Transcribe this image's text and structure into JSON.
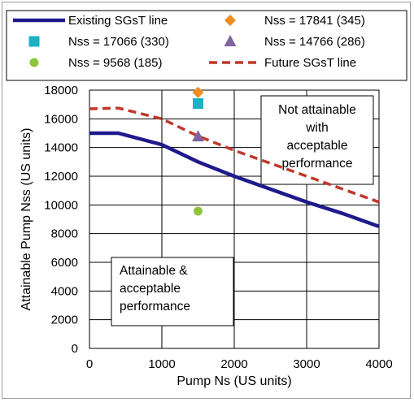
{
  "chart_data": {
    "type": "line",
    "xlabel": "Pump Ns  (US units)",
    "ylabel": "Attainable Pump Nss  (US units)",
    "xlim": [
      0,
      4000
    ],
    "ylim": [
      0,
      18000
    ],
    "x_ticks": [
      0,
      1000,
      2000,
      3000,
      4000
    ],
    "y_ticks": [
      0,
      2000,
      4000,
      6000,
      8000,
      10000,
      12000,
      14000,
      16000,
      18000
    ],
    "grid": true,
    "legend_position": "top",
    "series": [
      {
        "name": "Existing SGsT line",
        "kind": "line",
        "style": "solid",
        "color": "#1f1a8c",
        "points": [
          [
            0,
            15000
          ],
          [
            400,
            15000
          ],
          [
            1000,
            14200
          ],
          [
            1500,
            13000
          ],
          [
            2000,
            12000
          ],
          [
            2500,
            11100
          ],
          [
            3000,
            10200
          ],
          [
            3500,
            9400
          ],
          [
            4000,
            8500
          ]
        ]
      },
      {
        "name": "Future SGsT line",
        "kind": "line",
        "style": "dashed",
        "color": "#c0392b",
        "points": [
          [
            0,
            16700
          ],
          [
            400,
            16750
          ],
          [
            1000,
            16000
          ],
          [
            1500,
            14800
          ],
          [
            2000,
            13800
          ],
          [
            2500,
            12900
          ],
          [
            3000,
            12000
          ],
          [
            3500,
            11100
          ],
          [
            4000,
            10200
          ]
        ]
      },
      {
        "name": "Nss = 17841 (345)",
        "kind": "marker",
        "marker": "diamond",
        "color": "#f28c1e",
        "points": [
          [
            1500,
            17841
          ]
        ]
      },
      {
        "name": "Nss = 17066 (330)",
        "kind": "marker",
        "marker": "square",
        "color": "#1fb0c8",
        "points": [
          [
            1500,
            17066
          ]
        ]
      },
      {
        "name": "Nss = 14766 (286)",
        "kind": "marker",
        "marker": "triangle",
        "color": "#8064a2",
        "points": [
          [
            1500,
            14766
          ]
        ]
      },
      {
        "name": "Nss = 9568 (185)",
        "kind": "marker",
        "marker": "circle",
        "color": "#8cc63f",
        "points": [
          [
            1500,
            9568
          ]
        ]
      }
    ],
    "legend": [
      {
        "label": "Existing SGsT line",
        "series": 0
      },
      {
        "label": "Nss = 17841 (345)",
        "series": 2
      },
      {
        "label": "Nss = 17066 (330)",
        "series": 3
      },
      {
        "label": "Nss = 14766 (286)",
        "series": 4
      },
      {
        "label": "Nss = 9568 (185)",
        "series": 5
      },
      {
        "label": "Future SGsT line",
        "series": 1
      }
    ],
    "annotations": [
      {
        "lines": [
          "Not attainable",
          "with",
          "acceptable",
          "performance"
        ]
      },
      {
        "lines": [
          "Attainable &",
          "acceptable",
          "performance"
        ]
      }
    ]
  }
}
